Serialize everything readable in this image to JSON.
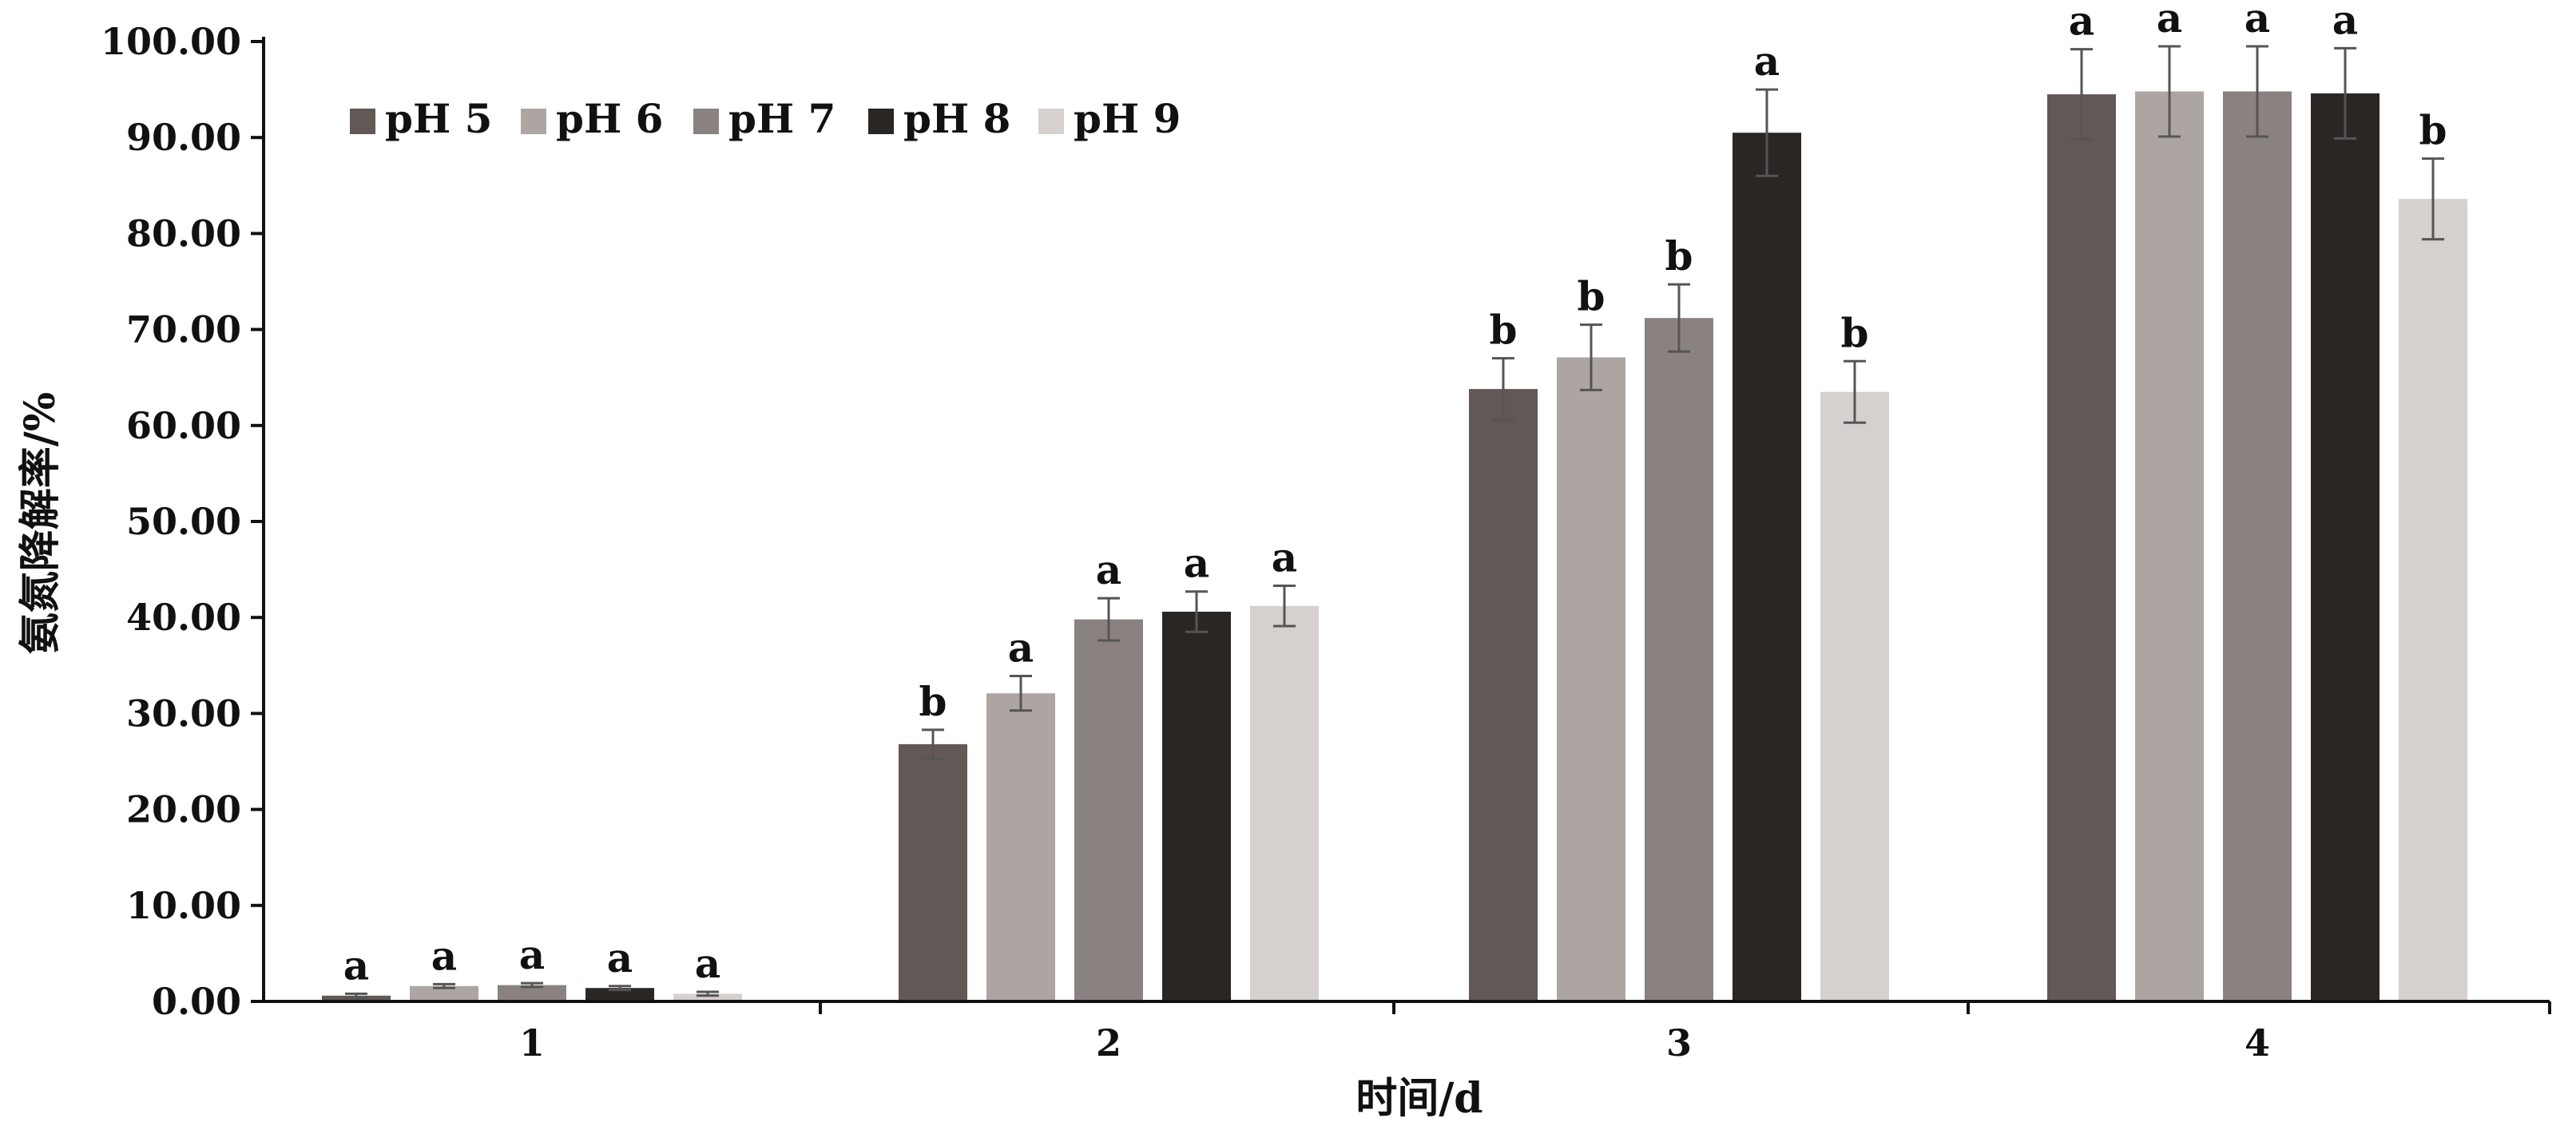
{
  "chart_data": {
    "type": "bar",
    "title": "",
    "xlabel": "时间/d",
    "ylabel": "氨氮降解率/%",
    "ylim": [
      0,
      100
    ],
    "yticks": [
      "0.00",
      "10.00",
      "20.00",
      "30.00",
      "40.00",
      "50.00",
      "60.00",
      "70.00",
      "80.00",
      "90.00",
      "100.00"
    ],
    "categories": [
      "1",
      "2",
      "3",
      "4"
    ],
    "legend_position": "top-left",
    "grid": false,
    "series": [
      {
        "name": "pH 5",
        "color": "#625855",
        "values": [
          0.6,
          26.8,
          63.8,
          94.5
        ],
        "errors": [
          0.2,
          1.5,
          3.2,
          4.7
        ],
        "significance": [
          "a",
          "b",
          "b",
          "a"
        ]
      },
      {
        "name": "pH 6",
        "color": "#ada5a2",
        "values": [
          1.6,
          32.1,
          67.1,
          94.8
        ],
        "errors": [
          0.2,
          1.8,
          3.4,
          4.7
        ],
        "significance": [
          "a",
          "a",
          "b",
          "a"
        ]
      },
      {
        "name": "pH 7",
        "color": "#8a8281",
        "values": [
          1.7,
          39.8,
          71.2,
          94.8
        ],
        "errors": [
          0.2,
          2.2,
          3.5,
          4.7
        ],
        "significance": [
          "a",
          "a",
          "b",
          "a"
        ]
      },
      {
        "name": "pH 8",
        "color": "#2a2624",
        "values": [
          1.4,
          40.6,
          90.5,
          94.6
        ],
        "errors": [
          0.2,
          2.1,
          4.5,
          4.7
        ],
        "significance": [
          "a",
          "a",
          "a",
          "a"
        ]
      },
      {
        "name": "pH 9",
        "color": "#d6d0ce",
        "values": [
          0.8,
          41.2,
          63.5,
          83.6
        ],
        "errors": [
          0.2,
          2.1,
          3.2,
          4.2
        ],
        "significance": [
          "a",
          "a",
          "b",
          "b"
        ]
      }
    ]
  }
}
